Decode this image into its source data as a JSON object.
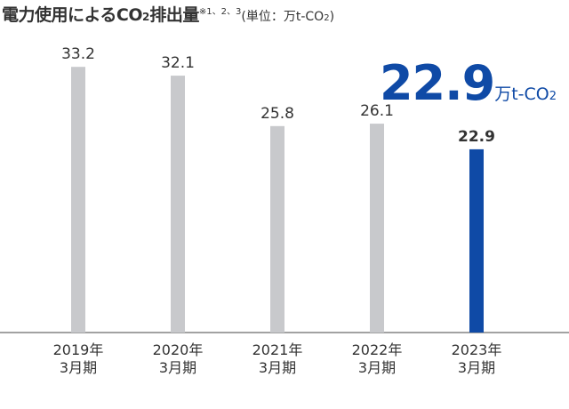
{
  "title": {
    "main": "電力使用によるCO",
    "main_sub": "2",
    "main_suffix": "排出量",
    "note": "※1、2、3",
    "unit_prefix": "(単位：万t-CO",
    "unit_sub": "2",
    "unit_suffix": ")"
  },
  "highlight": {
    "value": "22.9",
    "unit": "万t-CO",
    "unit_sub": "2"
  },
  "colors": {
    "bar_past": "#c8c9cc",
    "bar_current": "#0f4aa6",
    "text": "#333333",
    "axis": "#444444"
  },
  "chart_data": {
    "type": "bar",
    "categories": [
      [
        "2019年",
        "3月期"
      ],
      [
        "2020年",
        "3月期"
      ],
      [
        "2021年",
        "3月期"
      ],
      [
        "2022年",
        "3月期"
      ],
      [
        "2023年",
        "3月期"
      ]
    ],
    "values": [
      33.2,
      32.1,
      25.8,
      26.1,
      22.9
    ],
    "value_labels": [
      "33.2",
      "32.1",
      "25.8",
      "26.1",
      "22.9"
    ],
    "highlight_index": 4,
    "ylim": [
      0,
      36
    ],
    "grid": false,
    "legend": "none"
  }
}
